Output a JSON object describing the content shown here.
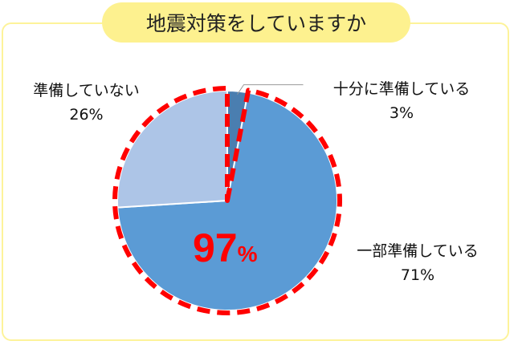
{
  "title": "地震対策をしていますか",
  "highlight": {
    "value": "97",
    "unit": "%",
    "color": "#ff0000"
  },
  "chart_data": {
    "type": "pie",
    "start": "top",
    "direction": "clockwise",
    "slices": [
      {
        "label": "十分に準備している",
        "value": 3,
        "value_label": "3%",
        "color": "#4a7eb0"
      },
      {
        "label": "一部準備している",
        "value": 71,
        "value_label": "71%",
        "color": "#5b9bd5"
      },
      {
        "label": "準備していない",
        "value": 26,
        "value_label": "26%",
        "color": "#adc5e7"
      }
    ],
    "highlighted_slices": [
      "一部準備している",
      "準備していない"
    ]
  }
}
